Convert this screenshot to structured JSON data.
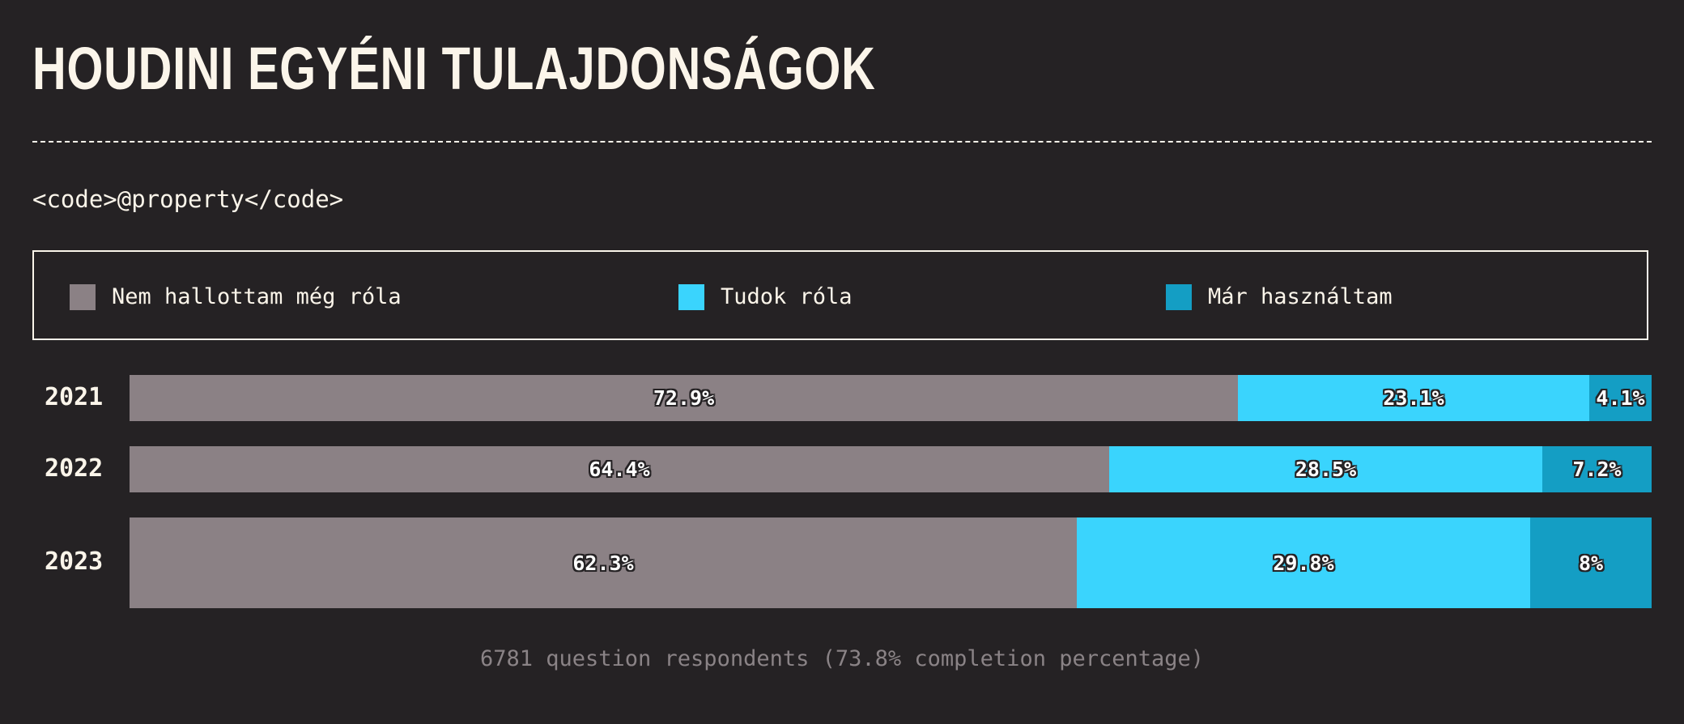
{
  "title": "HOUDINI EGYÉNI TULAJDONSÁGOK",
  "subtitle": "<code>@property</code>",
  "footnote": "6781 question respondents (73.8% completion percentage)",
  "legend": [
    {
      "label": "Nem hallottam még róla",
      "color": "#8b8185"
    },
    {
      "label": "Tudok róla",
      "color": "#3ad4fd"
    },
    {
      "label": "Már használtam",
      "color": "#149ec4"
    }
  ],
  "chart_data": {
    "type": "bar",
    "orientation": "horizontal",
    "stacked": true,
    "normalized": true,
    "categories": [
      "2021",
      "2022",
      "2023"
    ],
    "series": [
      {
        "name": "Nem hallottam még róla",
        "color": "#8b8185",
        "values": [
          72.9,
          64.4,
          62.3
        ],
        "labels": [
          "72.9%",
          "64.4%",
          "62.3%"
        ]
      },
      {
        "name": "Tudok róla",
        "color": "#3ad4fd",
        "values": [
          23.1,
          28.5,
          29.8
        ],
        "labels": [
          "23.1%",
          "28.5%",
          "29.8%"
        ]
      },
      {
        "name": "Már használtam",
        "color": "#149ec4",
        "values": [
          4.1,
          7.2,
          8
        ],
        "labels": [
          "4.1%",
          "7.2%",
          "8%"
        ]
      }
    ],
    "xlim": [
      0,
      100
    ],
    "legend_position": "top",
    "grid": false
  }
}
